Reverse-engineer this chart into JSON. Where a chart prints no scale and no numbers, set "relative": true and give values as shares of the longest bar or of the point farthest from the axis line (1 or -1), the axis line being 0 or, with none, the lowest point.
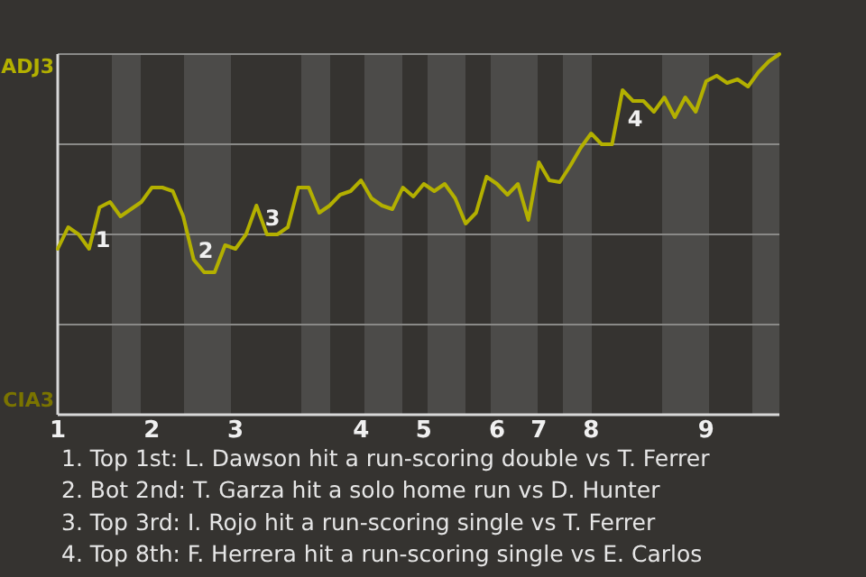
{
  "chart_data": {
    "type": "line",
    "relative": true,
    "categories": [
      "1",
      null,
      null,
      null,
      null,
      null,
      null,
      null,
      null,
      "2",
      null,
      null,
      null,
      null,
      null,
      null,
      null,
      "3",
      null,
      null,
      null,
      null,
      null,
      null,
      null,
      null,
      null,
      null,
      null,
      "4",
      null,
      null,
      null,
      null,
      null,
      "5",
      null,
      null,
      null,
      null,
      null,
      null,
      "6",
      null,
      null,
      null,
      "7",
      null,
      null,
      null,
      null,
      "8",
      null,
      null,
      null,
      null,
      null,
      null,
      null,
      null,
      null,
      null,
      "9",
      null,
      null,
      null,
      null,
      null,
      null,
      null
    ],
    "series": [
      {
        "color": "#b3b000",
        "values": [
          0.46,
          0.52,
          0.5,
          0.46,
          0.575,
          0.59,
          0.55,
          0.57,
          0.59,
          0.63,
          0.63,
          0.62,
          0.55,
          0.43,
          0.395,
          0.395,
          0.47,
          0.46,
          0.5,
          0.58,
          0.5,
          0.5,
          0.52,
          0.63,
          0.63,
          0.56,
          0.58,
          0.61,
          0.62,
          0.65,
          0.6,
          0.58,
          0.57,
          0.63,
          0.605,
          0.64,
          0.62,
          0.64,
          0.6,
          0.53,
          0.56,
          0.66,
          0.64,
          0.61,
          0.64,
          0.54,
          0.7,
          0.65,
          0.645,
          0.69,
          0.74,
          0.78,
          0.75,
          0.75,
          0.9,
          0.87,
          0.87,
          0.84,
          0.88,
          0.825,
          0.88,
          0.84,
          0.925,
          0.94,
          0.92,
          0.93,
          0.91,
          0.95,
          0.98,
          1.0
        ]
      }
    ],
    "grid": "y",
    "marker": "none",
    "line_style": "solid",
    "annotations": [
      "ADJ3",
      "CIA3",
      "1",
      "2",
      "3",
      "4",
      "1. Top 1st: L. Dawson hit a run-scoring double vs T. Ferrer",
      "2. Bot 2nd: T. Garza hit a solo home run vs D. Hunter",
      "3. Top 3rd: I. Rojo hit a run-scoring single vs T. Ferrer",
      "4. Top 8th: F. Herrera hit a run-scoring single vs E. Carlos"
    ]
  }
}
